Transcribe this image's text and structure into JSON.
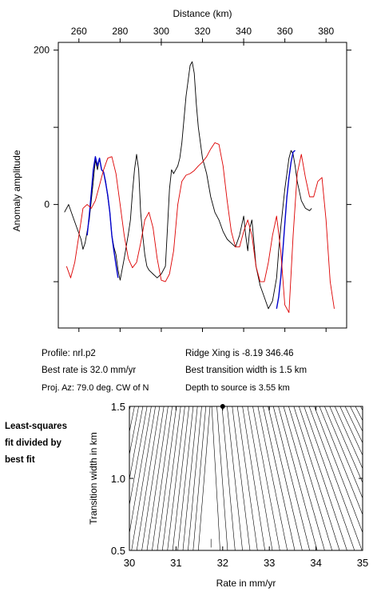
{
  "info": {
    "profile": "Profile: nrl.p2",
    "best_rate": "Best rate is 32.0 mm/yr",
    "proj_az": "Proj. Az: 79.0 deg. CW of N",
    "ridge_xing": "Ridge Xing is -8.19 346.46",
    "best_transition": "Best transition width is 1.5 km",
    "depth_to_source": "Depth to source is   3.55 km"
  },
  "side_note": {
    "line1": "Least-squares",
    "line2": "fit divided by",
    "line3": "best fit"
  },
  "colors": {
    "observed": "#000000",
    "fit_window": "#0000cc",
    "model": "#dd0000"
  },
  "chart_data": [
    {
      "type": "line",
      "title": "",
      "xlabel": "Distance (km)",
      "ylabel": "Anomaly amplitude",
      "xlim": [
        250,
        390
      ],
      "ylim": [
        -160,
        210
      ],
      "x_ticks": [
        260,
        280,
        300,
        320,
        340,
        360,
        380
      ],
      "y_ticks": [
        200,
        0
      ],
      "grid": false,
      "series": [
        {
          "color": "#000000",
          "x": [
            253,
            255,
            257,
            259,
            261,
            262,
            263,
            265,
            267,
            268,
            269,
            270,
            271,
            272,
            273,
            274,
            275,
            276,
            277,
            278,
            279,
            280,
            282,
            284,
            285,
            286,
            287,
            288,
            289,
            290,
            291,
            292,
            293,
            294,
            296,
            298,
            300,
            302,
            303,
            304,
            305,
            306,
            307,
            308,
            309,
            310,
            312,
            314,
            315,
            316,
            317,
            318,
            320,
            322,
            324,
            326,
            328,
            330,
            332,
            334,
            336,
            338,
            340,
            341,
            342,
            343,
            344,
            345,
            346,
            348,
            350,
            352,
            354,
            356,
            357,
            358,
            360,
            362,
            363,
            364,
            365,
            366,
            368,
            370,
            372,
            373
          ],
          "y": [
            -10,
            0,
            -15,
            -30,
            -45,
            -58,
            -50,
            -20,
            30,
            58,
            45,
            60,
            45,
            42,
            30,
            10,
            -10,
            -40,
            -55,
            -65,
            -85,
            -98,
            -70,
            -38,
            -20,
            15,
            45,
            65,
            45,
            -10,
            -40,
            -65,
            -80,
            -85,
            -90,
            -95,
            -90,
            -80,
            -30,
            20,
            45,
            40,
            45,
            50,
            60,
            80,
            140,
            180,
            185,
            170,
            130,
            100,
            60,
            40,
            10,
            -10,
            -20,
            -35,
            -45,
            -50,
            -55,
            -40,
            -15,
            -40,
            -60,
            -30,
            -20,
            -50,
            -80,
            -105,
            -120,
            -135,
            -125,
            -95,
            -60,
            -30,
            20,
            60,
            70,
            65,
            50,
            30,
            5,
            -5,
            -8,
            -5
          ]
        },
        {
          "color": "#0000cc",
          "x": [
            264,
            265,
            266,
            267,
            268,
            269,
            270,
            271,
            272,
            273,
            274,
            275,
            276,
            277,
            278,
            279
          ],
          "y": [
            -40,
            -15,
            15,
            45,
            62,
            50,
            60,
            45,
            42,
            28,
            12,
            -10,
            -40,
            -60,
            -78,
            -95
          ]
        },
        {
          "color": "#0000cc",
          "x": [
            356,
            357,
            358,
            359,
            360,
            361,
            362,
            363,
            364,
            365
          ],
          "y": [
            -135,
            -120,
            -95,
            -60,
            -25,
            10,
            35,
            55,
            68,
            70
          ]
        },
        {
          "color": "#dd0000",
          "x": [
            254,
            256,
            258,
            260,
            262,
            264,
            266,
            268,
            270,
            272,
            274,
            276,
            278,
            280,
            282,
            284,
            286,
            288,
            290,
            292,
            294,
            296,
            298,
            300,
            302,
            304,
            306,
            308,
            310,
            312,
            314,
            316,
            318,
            320,
            322,
            324,
            326,
            328,
            330,
            332,
            334,
            336,
            338,
            340,
            342,
            344,
            346,
            348,
            350,
            352,
            354,
            356,
            358,
            360,
            362,
            364,
            366,
            368,
            370,
            372,
            374,
            376,
            378,
            380,
            382,
            384
          ],
          "y": [
            -80,
            -95,
            -75,
            -40,
            -5,
            0,
            -5,
            5,
            25,
            45,
            60,
            62,
            40,
            0,
            -40,
            -70,
            -82,
            -75,
            -50,
            -20,
            -10,
            -30,
            -70,
            -98,
            -100,
            -90,
            -60,
            0,
            30,
            38,
            40,
            44,
            50,
            55,
            62,
            72,
            80,
            78,
            50,
            5,
            -35,
            -55,
            -55,
            -35,
            -20,
            -40,
            -80,
            -100,
            -100,
            -75,
            -40,
            -15,
            -60,
            -130,
            -140,
            -40,
            40,
            65,
            35,
            10,
            10,
            30,
            35,
            -20,
            -100,
            -135
          ]
        }
      ]
    },
    {
      "type": "contour",
      "title": "",
      "xlabel": "Rate in mm/yr",
      "ylabel": "Transition width in km",
      "xlim": [
        30,
        35
      ],
      "ylim": [
        0.5,
        1.5
      ],
      "x_ticks": [
        "30",
        "31",
        "32",
        "33",
        "34",
        "35"
      ],
      "y_ticks": [
        "0.5",
        "1.0",
        "1.5"
      ],
      "best_fit_point": {
        "x": 32.0,
        "y": 1.5
      }
    }
  ]
}
